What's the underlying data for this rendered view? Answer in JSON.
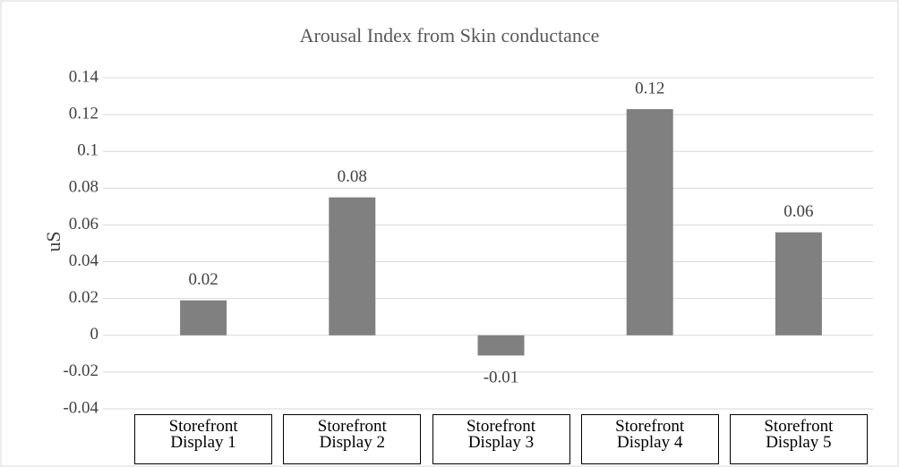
{
  "chart_data": {
    "type": "bar",
    "title": "Arousal Index from Skin conductance",
    "ylabel": "uS",
    "categories": [
      "Storefront Display 1",
      "Storefront Display 2",
      "Storefront Display 3",
      "Storefront Display 4",
      "Storefront Display 5"
    ],
    "values": [
      0.019,
      0.075,
      -0.011,
      0.123,
      0.056
    ],
    "value_labels": [
      "0.02",
      "0.08",
      "-0.01",
      "0.12",
      "0.06"
    ],
    "color": "#808080",
    "ylim": [
      -0.04,
      0.14
    ],
    "yticks": [
      -0.04,
      -0.02,
      0,
      0.02,
      0.04,
      0.06,
      0.08,
      0.1,
      0.12,
      0.14
    ],
    "grid": true
  }
}
